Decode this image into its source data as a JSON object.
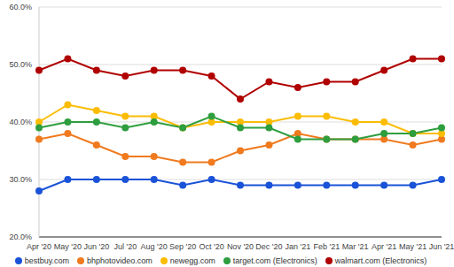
{
  "chart_data": {
    "type": "line",
    "x": [
      "Apr '20",
      "May '20",
      "Jun '20",
      "Jul '20",
      "Aug '20",
      "Sep '20",
      "Oct '20",
      "Nov '20",
      "Dec '20",
      "Jan '21",
      "Feb '21",
      "Mar '21",
      "Apr '21",
      "May '21",
      "Jun '21"
    ],
    "series": [
      {
        "name": "bestbuy.com",
        "color": "#1a53d8",
        "values": [
          28,
          30,
          30,
          30,
          30,
          29,
          30,
          29,
          29,
          29,
          29,
          29,
          29,
          29,
          30
        ]
      },
      {
        "name": "bhphotovideo.com",
        "color": "#f07a1e",
        "values": [
          37,
          38,
          36,
          34,
          34,
          33,
          33,
          35,
          36,
          38,
          37,
          37,
          37,
          36,
          37
        ]
      },
      {
        "name": "newegg.com",
        "color": "#fbbc04",
        "values": [
          40,
          43,
          42,
          41,
          41,
          39,
          40,
          40,
          40,
          41,
          41,
          40,
          40,
          38,
          38
        ]
      },
      {
        "name": "target.com (Electronics)",
        "color": "#2e9e3e",
        "values": [
          39,
          40,
          40,
          39,
          40,
          39,
          41,
          39,
          39,
          37,
          37,
          37,
          38,
          38,
          39
        ]
      },
      {
        "name": "walmart.com (Electronics)",
        "color": "#b00000",
        "values": [
          49,
          51,
          49,
          48,
          49,
          49,
          48,
          44,
          47,
          46,
          47,
          47,
          49,
          51,
          51
        ]
      }
    ],
    "ylim": [
      20,
      60
    ],
    "yticks": [
      {
        "value": 20,
        "label": "20.0%"
      },
      {
        "value": 30,
        "label": "30.0%"
      },
      {
        "value": 40,
        "label": "40.0%"
      },
      {
        "value": 50,
        "label": "50.0%"
      },
      {
        "value": 60,
        "label": "60.0%"
      }
    ],
    "grid": true,
    "legend": "bottom",
    "marker": "circle"
  }
}
